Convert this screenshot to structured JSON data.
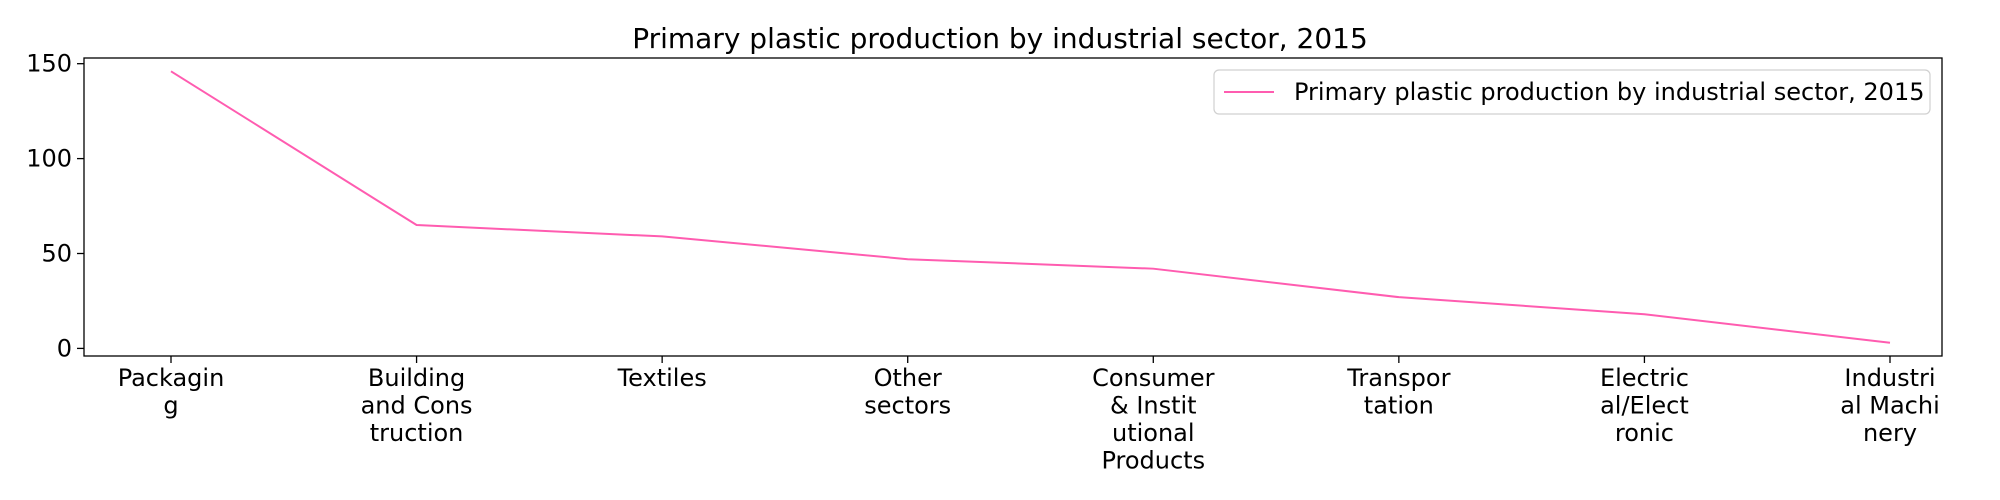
{
  "chart_data": {
    "type": "line",
    "title": "Primary plastic production by industrial sector, 2015",
    "xlabel": "",
    "ylabel": "",
    "categories": [
      [
        "Packagin",
        "g"
      ],
      [
        "Building",
        "and Cons",
        "truction"
      ],
      [
        "Textiles"
      ],
      [
        "Other",
        "sectors"
      ],
      [
        "Consumer",
        "& Instit",
        "utional",
        "Products"
      ],
      [
        "Transpor",
        "tation"
      ],
      [
        "Electric",
        "al/Elect",
        "ronic"
      ],
      [
        "Industri",
        "al Machi",
        "nery"
      ]
    ],
    "series": [
      {
        "name": "Primary plastic production by industrial sector, 2015",
        "color": "#ff5cb0",
        "values": [
          146,
          65,
          59,
          47,
          42,
          27,
          18,
          3
        ]
      }
    ],
    "yticks": [
      0,
      50,
      100,
      150
    ],
    "ylim": [
      -4,
      153
    ],
    "grid": false,
    "legend": "top-right"
  }
}
